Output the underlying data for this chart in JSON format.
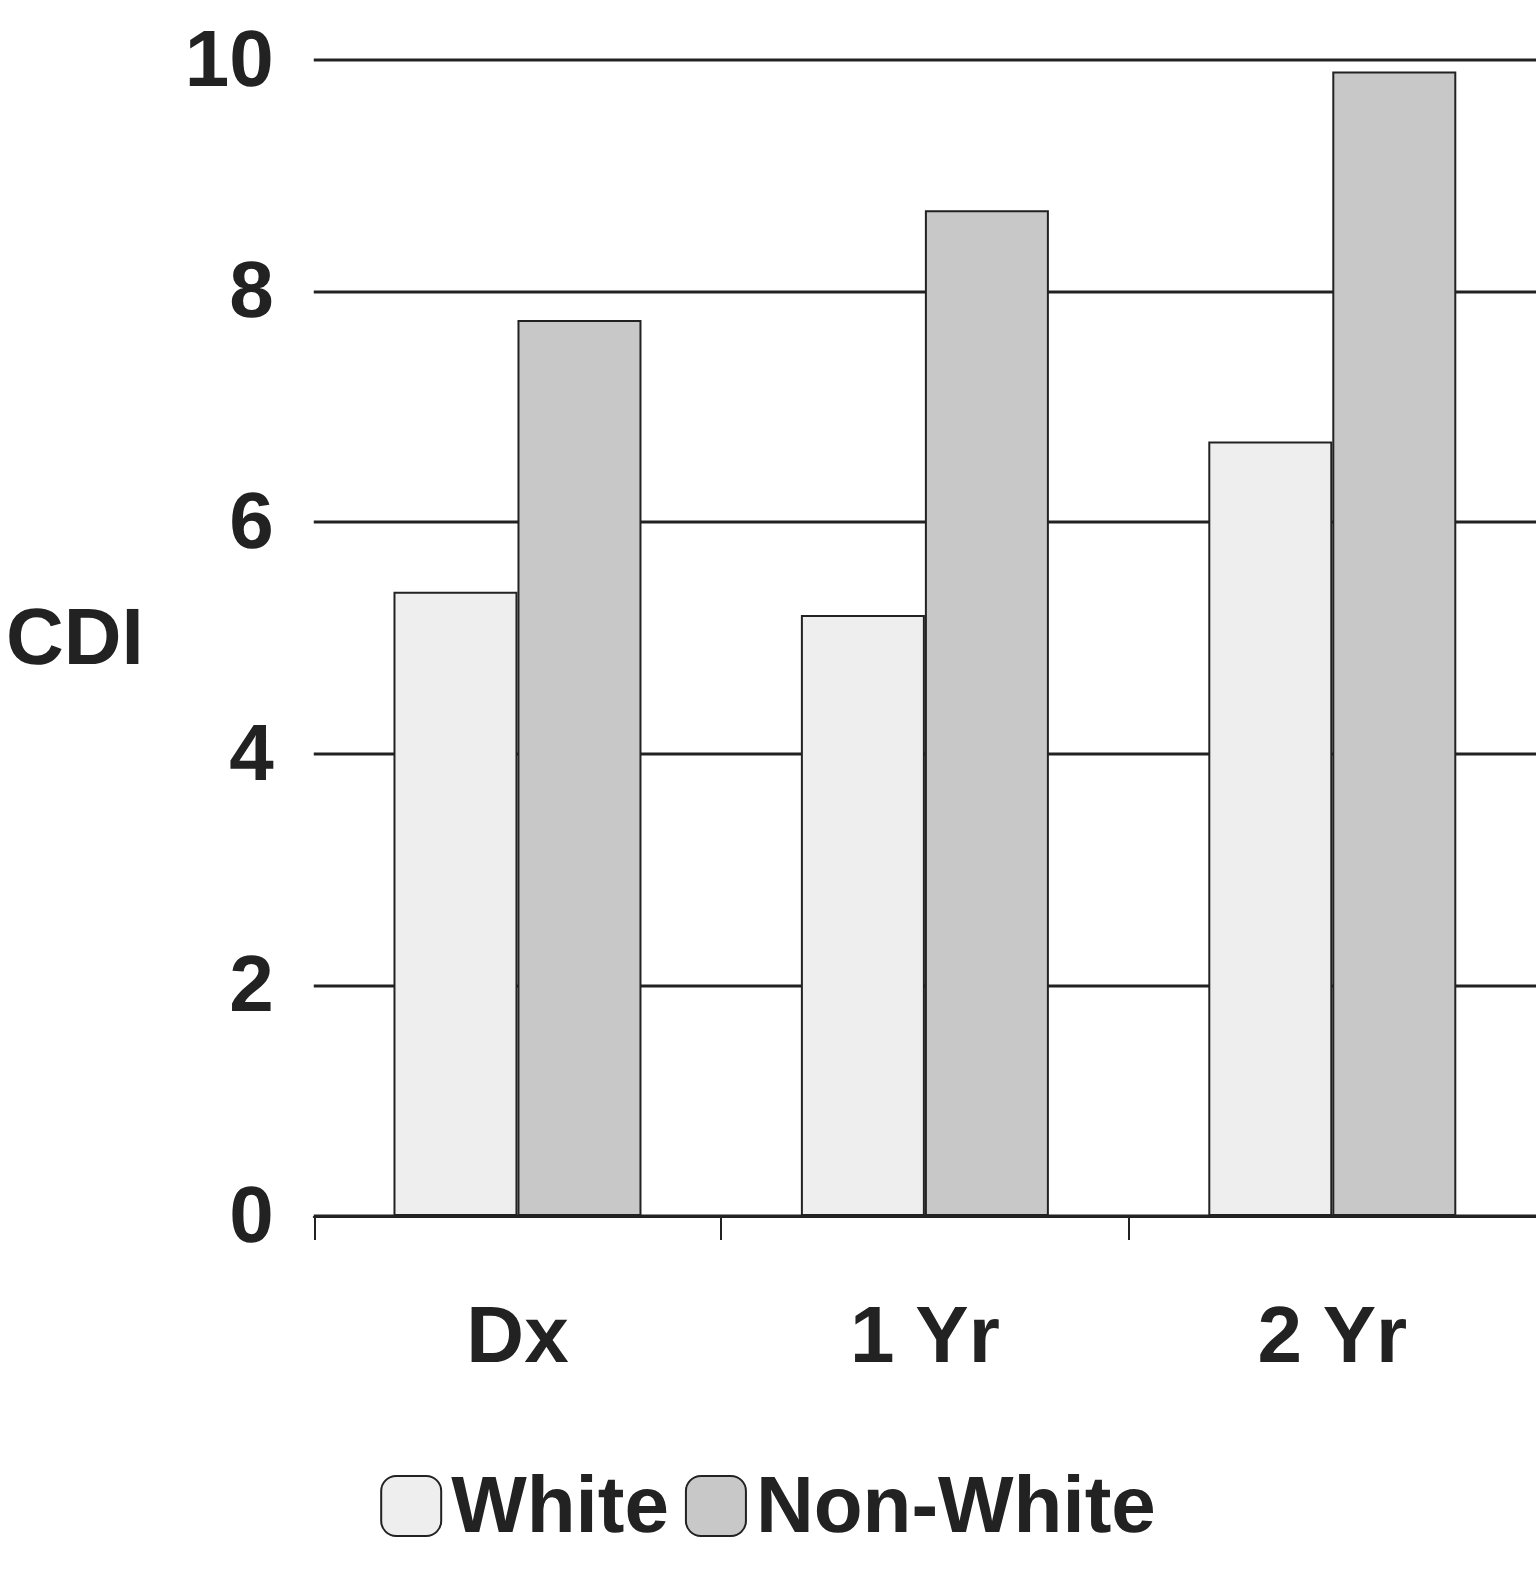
{
  "chart_data": {
    "type": "bar",
    "ylabel": "CDI",
    "categories": [
      "Dx",
      "1 Yr",
      "2 Yr"
    ],
    "series": [
      {
        "name": "White",
        "color": "#eeeeee",
        "values": [
          5.4,
          5.2,
          6.7
        ]
      },
      {
        "name": "Non-White",
        "color": "#c8c8c8",
        "values": [
          7.75,
          8.7,
          9.9
        ]
      }
    ],
    "ylim": [
      0,
      10
    ],
    "yticks": [
      0,
      2,
      4,
      6,
      8,
      10
    ],
    "grid": "y",
    "legend": "bottom"
  }
}
